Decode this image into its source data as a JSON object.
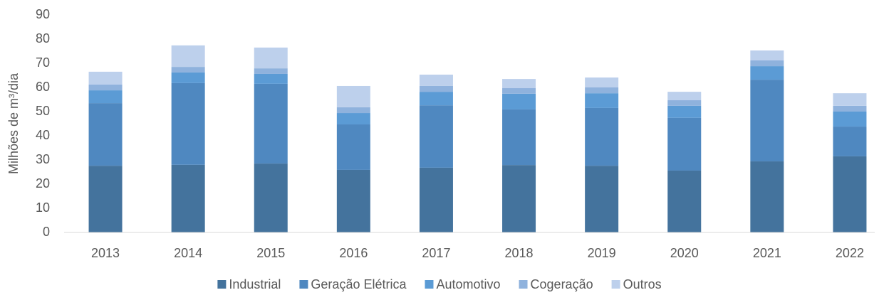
{
  "chart_data": {
    "type": "bar",
    "stacked": true,
    "y_label": "Milhões de m³/dia",
    "categories": [
      "2013",
      "2014",
      "2015",
      "2016",
      "2017",
      "2018",
      "2019",
      "2020",
      "2021",
      "2022"
    ],
    "series": [
      {
        "name": "Industrial",
        "color": "#44739d",
        "values": [
          27.6,
          28,
          28.5,
          25.9,
          26.8,
          27.9,
          27.6,
          25.6,
          29.4,
          31.5
        ]
      },
      {
        "name": "Geração Elétrica",
        "color": "#4f88c0",
        "values": [
          25.9,
          33.8,
          33,
          18.8,
          25.8,
          23,
          23.9,
          21.8,
          33.8,
          12.3
        ]
      },
      {
        "name": "Automotivo",
        "color": "#5b9bd5",
        "values": [
          5.3,
          4.4,
          4.1,
          4.7,
          5.6,
          6.5,
          6.1,
          5,
          5.6,
          6.2
        ]
      },
      {
        "name": "Cogeração",
        "color": "#8fb2dd",
        "values": [
          2.4,
          2.3,
          2.3,
          2.4,
          2.4,
          2.3,
          2.4,
          2.3,
          2.4,
          2.4
        ]
      },
      {
        "name": "Outros",
        "color": "#bdd0ec",
        "values": [
          5.3,
          8.9,
          8.6,
          8.8,
          4.7,
          3.8,
          4.1,
          3.5,
          4.1,
          5.2
        ]
      }
    ],
    "ylim": [
      0,
      90
    ],
    "yticks": [
      0,
      10,
      20,
      30,
      40,
      50,
      60,
      70,
      80,
      90
    ],
    "grid": false,
    "legend": "bottom"
  }
}
